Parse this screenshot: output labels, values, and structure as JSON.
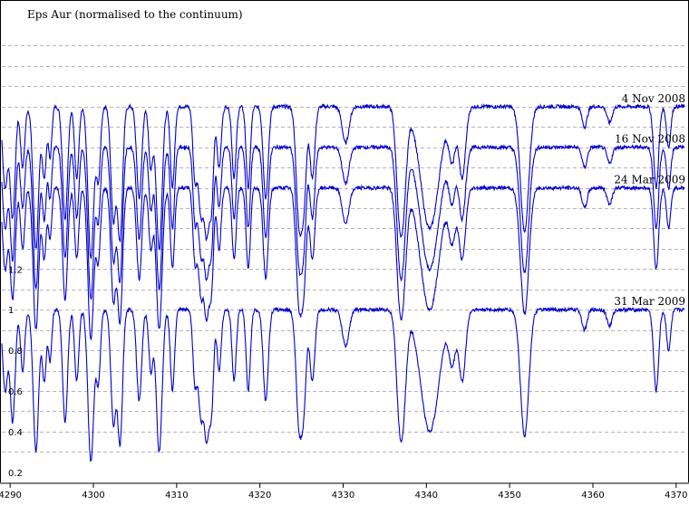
{
  "chart_data": {
    "type": "line",
    "title": "Eps Aur  (normalised to the continuum)",
    "xlabel": "",
    "ylabel": "",
    "xlim": [
      4289,
      4371
    ],
    "ylim": [
      0.15,
      2.4
    ],
    "grid": true,
    "x_ticks": [
      "4290",
      "4300",
      "4310",
      "4320",
      "4330",
      "4340",
      "4350",
      "4360",
      "4370"
    ],
    "y_ticks": [
      {
        "v": 1.2,
        "label": "1.2"
      },
      {
        "v": 1.0,
        "label": "1"
      },
      {
        "v": 0.8,
        "label": "0.8"
      },
      {
        "v": 0.6,
        "label": "0.6"
      },
      {
        "v": 0.4,
        "label": "0.4"
      },
      {
        "v": 0.2,
        "label": "0.2"
      }
    ],
    "line_color": "#0000cc",
    "grid_color": "#b4b4b4",
    "continuum": 1.0,
    "lines": [
      {
        "c": 4289.4,
        "d": 0.4,
        "w": 0.3
      },
      {
        "c": 4290.3,
        "d": 0.55,
        "w": 0.3
      },
      {
        "c": 4291.5,
        "d": 0.3,
        "w": 0.25
      },
      {
        "c": 4293.1,
        "d": 0.7,
        "w": 0.33
      },
      {
        "c": 4294.1,
        "d": 0.35,
        "w": 0.25
      },
      {
        "c": 4294.8,
        "d": 0.25,
        "w": 0.2
      },
      {
        "c": 4296.6,
        "d": 0.55,
        "w": 0.3
      },
      {
        "c": 4298.0,
        "d": 0.35,
        "w": 0.25
      },
      {
        "c": 4299.7,
        "d": 0.75,
        "w": 0.35
      },
      {
        "c": 4300.6,
        "d": 0.35,
        "w": 0.25
      },
      {
        "c": 4302.4,
        "d": 0.55,
        "w": 0.3
      },
      {
        "c": 4303.2,
        "d": 0.65,
        "w": 0.3
      },
      {
        "c": 4305.5,
        "d": 0.45,
        "w": 0.3
      },
      {
        "c": 4306.9,
        "d": 0.3,
        "w": 0.25
      },
      {
        "c": 4307.9,
        "d": 0.7,
        "w": 0.35
      },
      {
        "c": 4309.5,
        "d": 0.4,
        "w": 0.25
      },
      {
        "c": 4312.2,
        "d": 0.35,
        "w": 0.25
      },
      {
        "c": 4312.9,
        "d": 0.5,
        "w": 0.3
      },
      {
        "c": 4313.6,
        "d": 0.6,
        "w": 0.3
      },
      {
        "c": 4314.2,
        "d": 0.45,
        "w": 0.25
      },
      {
        "c": 4315.1,
        "d": 0.3,
        "w": 0.25
      },
      {
        "c": 4316.9,
        "d": 0.35,
        "w": 0.25
      },
      {
        "c": 4318.6,
        "d": 0.4,
        "w": 0.25
      },
      {
        "c": 4320.7,
        "d": 0.45,
        "w": 0.3
      },
      {
        "c": 4324.7,
        "d": 0.55,
        "w": 0.35
      },
      {
        "c": 4325.3,
        "d": 0.4,
        "w": 0.3
      },
      {
        "c": 4326.3,
        "d": 0.35,
        "w": 0.3
      },
      {
        "c": 4330.3,
        "d": 0.18,
        "w": 0.4
      },
      {
        "c": 4336.6,
        "d": 0.2,
        "w": 0.35
      },
      {
        "c": 4337.1,
        "d": 0.55,
        "w": 0.45
      },
      {
        "c": 4340.4,
        "d": 0.6,
        "w": 1.1
      },
      {
        "c": 4343.1,
        "d": 0.25,
        "w": 0.4
      },
      {
        "c": 4344.3,
        "d": 0.35,
        "w": 0.4
      },
      {
        "c": 4351.8,
        "d": 0.62,
        "w": 0.5
      },
      {
        "c": 4359.0,
        "d": 0.1,
        "w": 0.3
      },
      {
        "c": 4362.0,
        "d": 0.08,
        "w": 0.3
      },
      {
        "c": 4367.6,
        "d": 0.4,
        "w": 0.3
      },
      {
        "c": 4369.1,
        "d": 0.2,
        "w": 0.25
      }
    ],
    "series": [
      {
        "name": "4 Nov 2008",
        "offset": 1.0
      },
      {
        "name": "16 Nov 2008",
        "offset": 0.8
      },
      {
        "name": "24 Mar 2009",
        "offset": 0.6
      },
      {
        "name": "31 Mar 2009",
        "offset": 0.0
      }
    ]
  }
}
